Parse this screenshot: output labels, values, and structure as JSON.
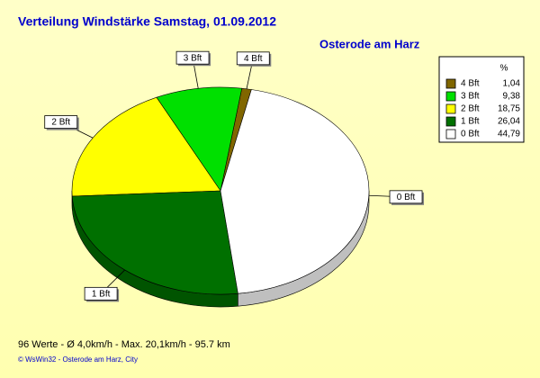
{
  "chart_data": {
    "type": "pie",
    "title": "Verteilung Windstärke  Samstag, 01.09.2012",
    "subtitle": "Osterode am Harz",
    "legend_header": "%",
    "categories": [
      "4 Bft",
      "3 Bft",
      "2 Bft",
      "1 Bft",
      "0 Bft"
    ],
    "values": [
      1.04,
      9.38,
      18.75,
      26.04,
      44.79
    ],
    "value_labels": [
      "1,04",
      "9,38",
      "18,75",
      "26,04",
      "44,79"
    ],
    "colors": [
      "#806600",
      "#00e000",
      "#ffff00",
      "#007000",
      "#ffffff"
    ],
    "legend": "top-right",
    "footer": "96 Werte   -   Ø 4,0km/h  -  Max. 20,1km/h   -   95.7 km",
    "credit": "© WsWin32  -  Osterode am Harz, City"
  }
}
